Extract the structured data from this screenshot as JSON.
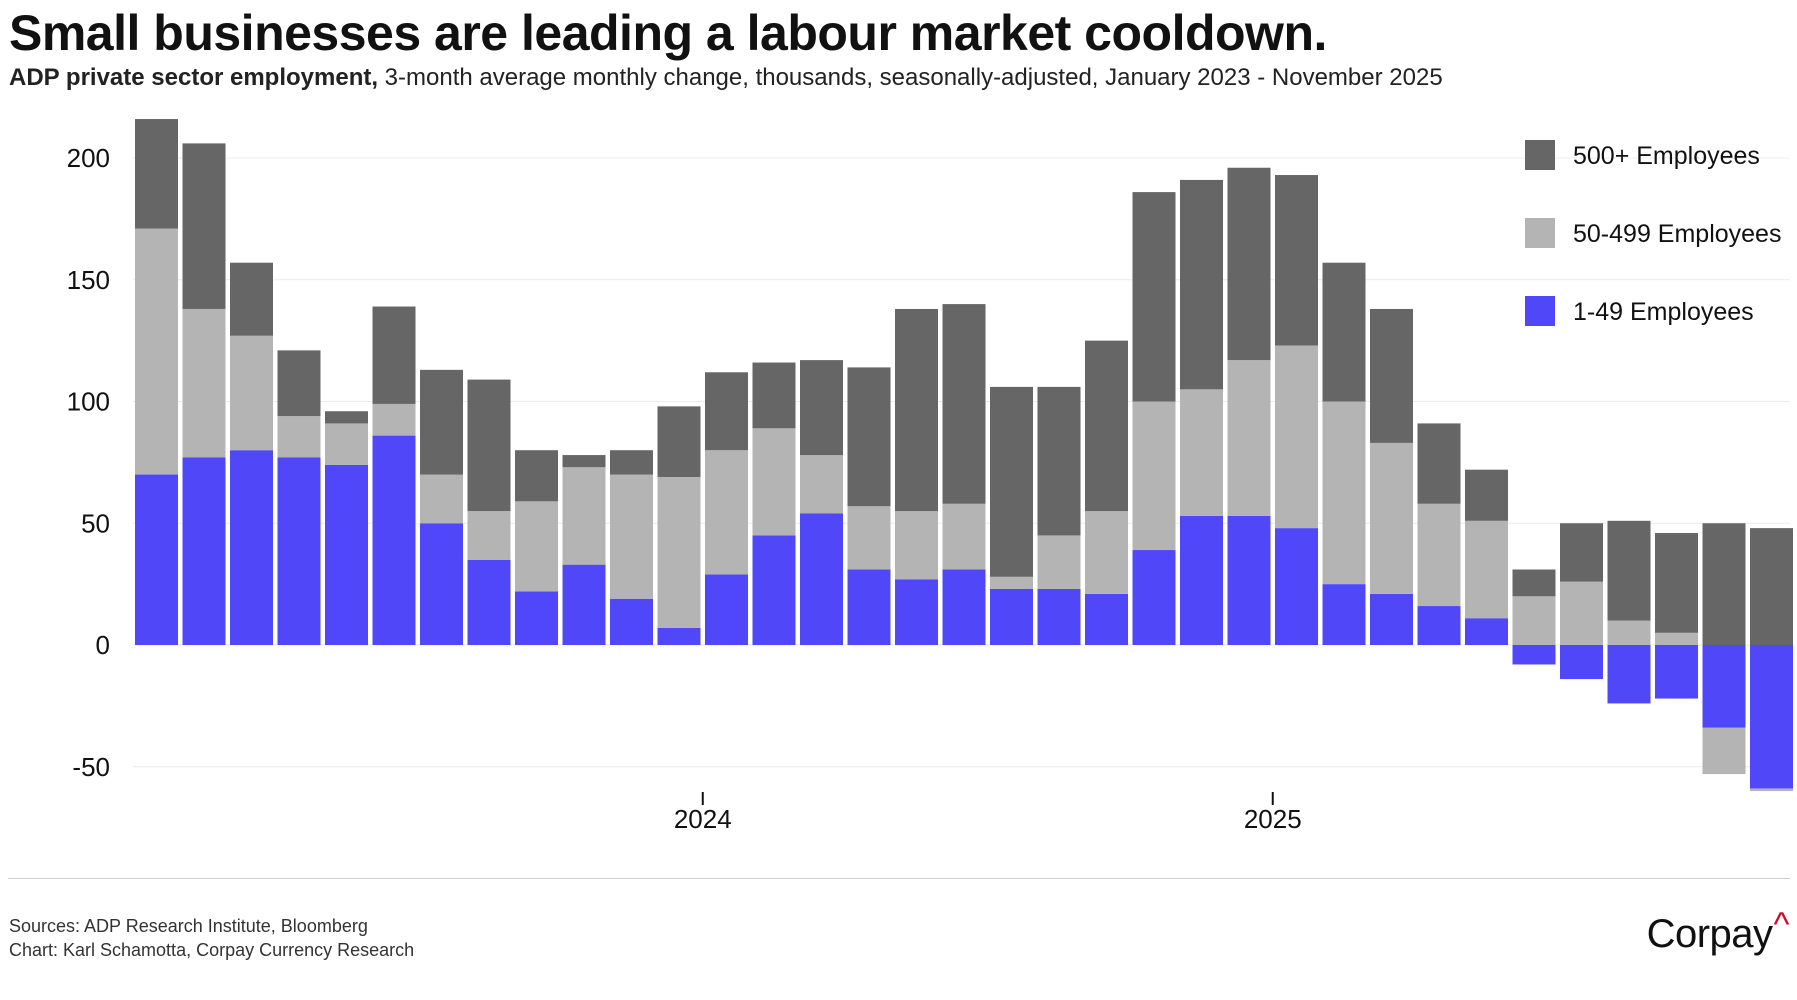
{
  "header": {
    "title": "Small businesses are leading a labour market cooldown.",
    "subtitle_bold": "ADP private sector employment,",
    "subtitle_rest": " 3-month average monthly change, thousands, seasonally-adjusted, January 2023 - November 2025"
  },
  "footer": {
    "sources": "Sources: ADP Research Institute, Bloomberg",
    "credit": "Chart: Karl Schamotta, Corpay Currency Research",
    "logo_text": "Corpay",
    "logo_caret": "^"
  },
  "chart_data": {
    "type": "bar",
    "stacked": true,
    "x_start": "2023-01",
    "x_end": "2025-11",
    "x_tick_labels": [
      "2024",
      "2025"
    ],
    "x_tick_positions": [
      "2024-01",
      "2025-01"
    ],
    "ylim": [
      -60,
      215
    ],
    "y_ticks": [
      200,
      150,
      100,
      50,
      0,
      -50
    ],
    "grid": true,
    "legend_position": "top-right",
    "series": [
      {
        "name": "1-49 Employees",
        "color": "#5048f8",
        "values": [
          70,
          77,
          80,
          77,
          74,
          86,
          50,
          35,
          22,
          33,
          19,
          7,
          29,
          45,
          54,
          31,
          27,
          31,
          23,
          23,
          21,
          39,
          53,
          53,
          48,
          25,
          21,
          16,
          11,
          -8,
          -14,
          -24,
          -22,
          -34,
          -59
        ]
      },
      {
        "name": "50-499 Employees",
        "color": "#b4b4b4",
        "values": [
          101,
          61,
          47,
          17,
          17,
          13,
          20,
          20,
          37,
          40,
          51,
          62,
          51,
          44,
          24,
          26,
          28,
          27,
          5,
          22,
          34,
          61,
          52,
          64,
          75,
          75,
          62,
          42,
          40,
          20,
          26,
          10,
          5,
          -19,
          -1
        ]
      },
      {
        "name": "500+ Employees",
        "color": "#666666",
        "values": [
          45,
          68,
          30,
          27,
          5,
          40,
          43,
          54,
          21,
          5,
          10,
          29,
          32,
          27,
          39,
          57,
          83,
          82,
          78,
          61,
          70,
          86,
          86,
          79,
          70,
          57,
          55,
          33,
          21,
          11,
          24,
          41,
          41,
          50,
          48
        ]
      }
    ]
  }
}
